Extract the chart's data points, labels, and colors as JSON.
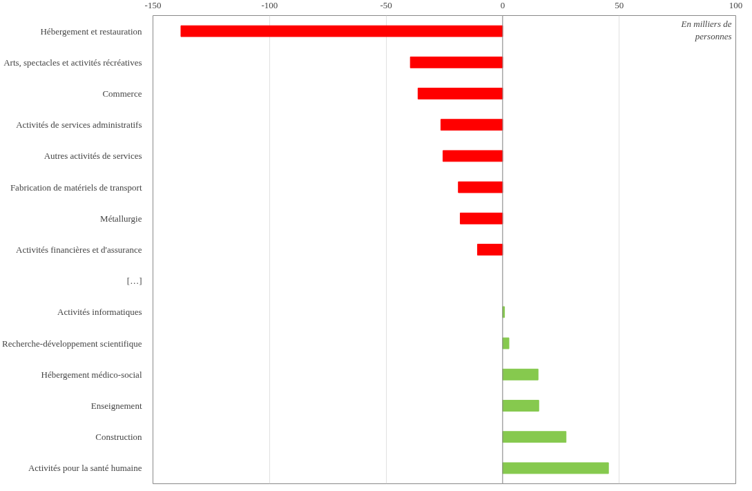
{
  "chart_data": {
    "type": "bar",
    "orientation": "horizontal",
    "categories": [
      "Hébergement et restauration",
      "Arts, spectacles et activités récréatives",
      "Commerce",
      "Activités de services administratifs",
      "Autres activités de services",
      "Fabrication de matériels de transport",
      "Métallurgie",
      "Activités financières et d'assurance",
      "[…]",
      "Activités informatiques",
      "Recherche-développement scientifique",
      "Hébergement médico-social",
      "Enseignement",
      "Construction",
      "Activités pour la santé humaine"
    ],
    "values": [
      -138,
      -39.6,
      -36.3,
      -26.5,
      -25.6,
      -19,
      -18.2,
      -10.8,
      null,
      0.8,
      2.7,
      15.2,
      15.5,
      27.2,
      45.4
    ],
    "colors": [
      "#ff0000",
      "#ff0000",
      "#ff0000",
      "#ff0000",
      "#ff0000",
      "#ff0000",
      "#ff0000",
      "#ff0000",
      "#ff0000",
      "#86c94e",
      "#86c94e",
      "#86c94e",
      "#86c94e",
      "#86c94e",
      "#86c94e"
    ],
    "xlim": [
      -150,
      100
    ],
    "xticks": [
      -150,
      -100,
      -50,
      0,
      50,
      100
    ],
    "grid": "x",
    "annotations": [
      "En milliers de\npersonnes"
    ]
  }
}
